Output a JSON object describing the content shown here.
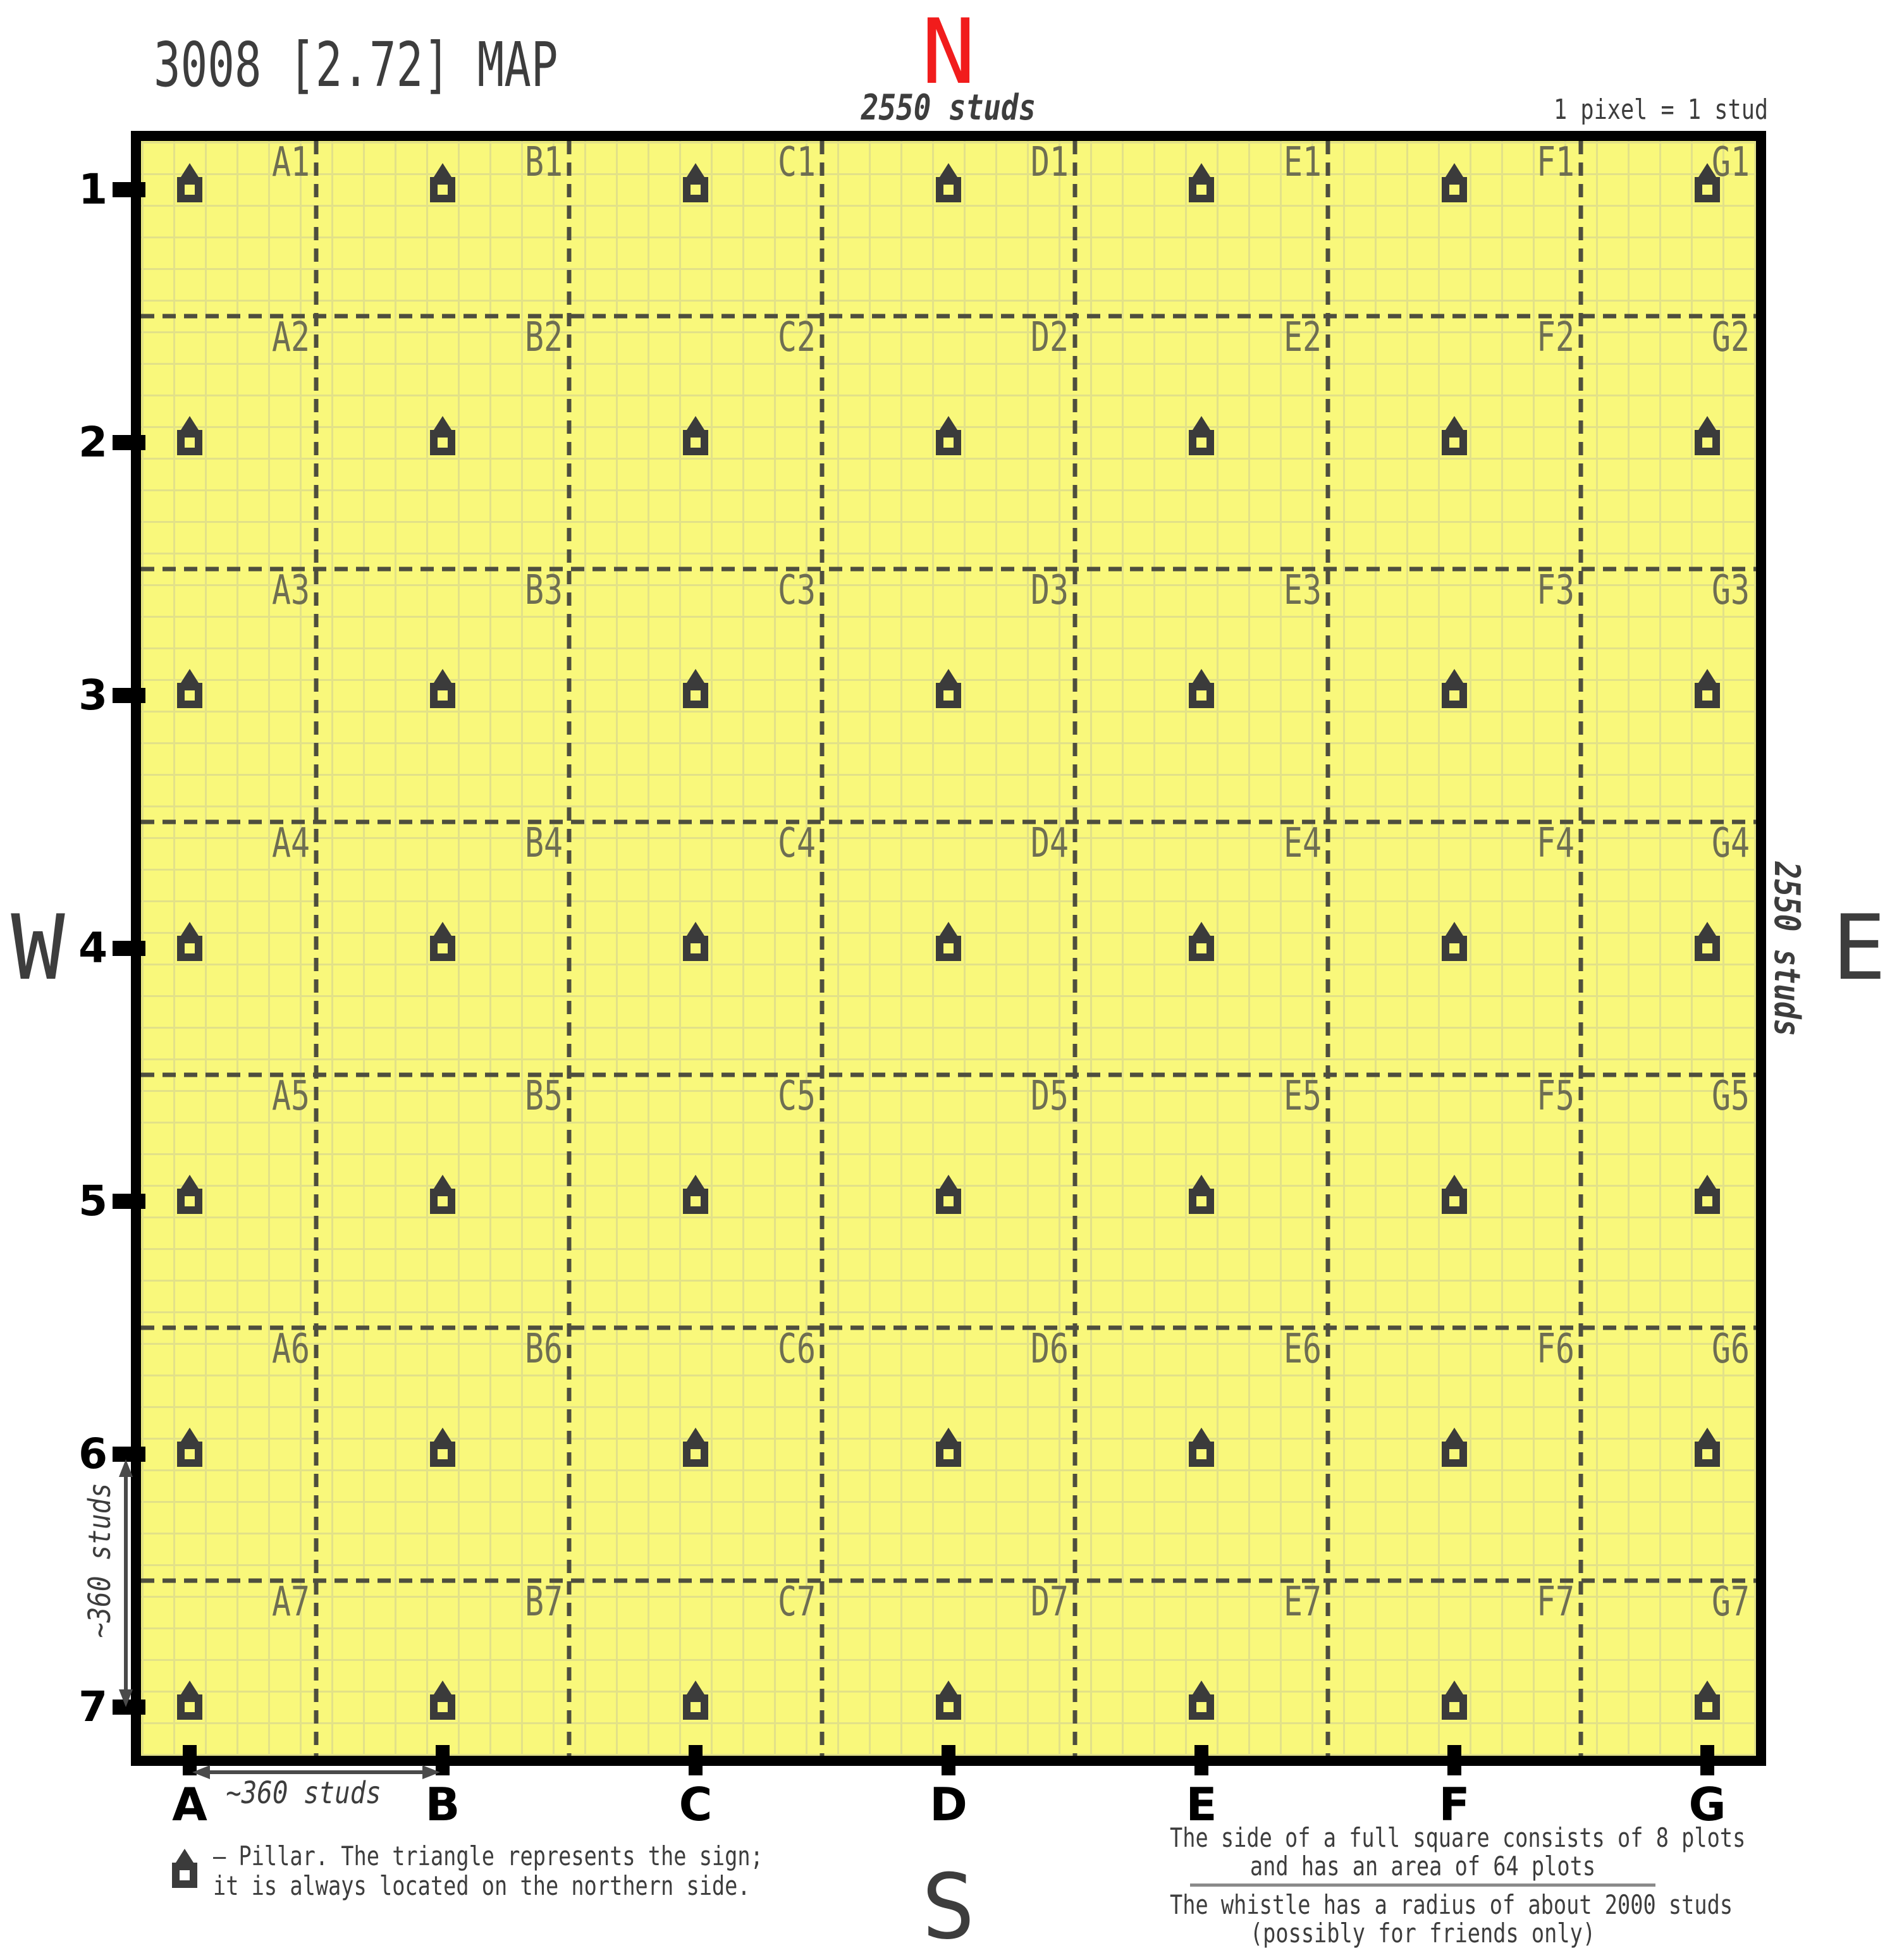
{
  "header": {
    "title": "3008 [2.72] MAP"
  },
  "compass": {
    "north": "N",
    "west": "W",
    "east": "E",
    "south": "S"
  },
  "scale": {
    "top": "2550 studs",
    "right": "2550 studs",
    "pixel_note": "1 pixel = 1 stud"
  },
  "grid": {
    "columns": [
      "A",
      "B",
      "C",
      "D",
      "E",
      "F",
      "G"
    ],
    "rows": [
      "1",
      "2",
      "3",
      "4",
      "5",
      "6",
      "7"
    ],
    "cells": [
      [
        "A1",
        "B1",
        "C1",
        "D1",
        "E1",
        "F1",
        "G1"
      ],
      [
        "A2",
        "B2",
        "C2",
        "D2",
        "E2",
        "F2",
        "G2"
      ],
      [
        "A3",
        "B3",
        "C3",
        "D3",
        "E3",
        "F3",
        "G3"
      ],
      [
        "A4",
        "B4",
        "C4",
        "D4",
        "E4",
        "F4",
        "G4"
      ],
      [
        "A5",
        "B5",
        "C5",
        "D5",
        "E5",
        "F5",
        "G5"
      ],
      [
        "A6",
        "B6",
        "C6",
        "D6",
        "E6",
        "F6",
        "G6"
      ],
      [
        "A7",
        "B7",
        "C7",
        "D7",
        "E7",
        "F7",
        "G7"
      ]
    ]
  },
  "annotations": {
    "col_spacing": "~360 studs",
    "row_spacing": "~360 studs"
  },
  "legend": {
    "line1": "– Pillar. The triangle represents the sign;",
    "line2": "it is always located on the northern side."
  },
  "notes": {
    "square_line1": "The side of a full square consists of 8 plots",
    "square_line2": "and has an area of 64 plots",
    "whistle_line1": "The whistle has a radius of about 2000 studs",
    "whistle_line2": "(possibly for friends only)"
  },
  "colors": {
    "map_bg": "#f9f87b",
    "plot_grid": "#e2e188",
    "square_dash": "#4e4e3e",
    "cell_label": "#6e6e52",
    "pillar": "#3b3b3b",
    "north": "#f11c1c",
    "ink": "#3d3d3d",
    "axis": "#000000",
    "arrow": "#4a4a4a",
    "separator": "#8a8a8a"
  }
}
